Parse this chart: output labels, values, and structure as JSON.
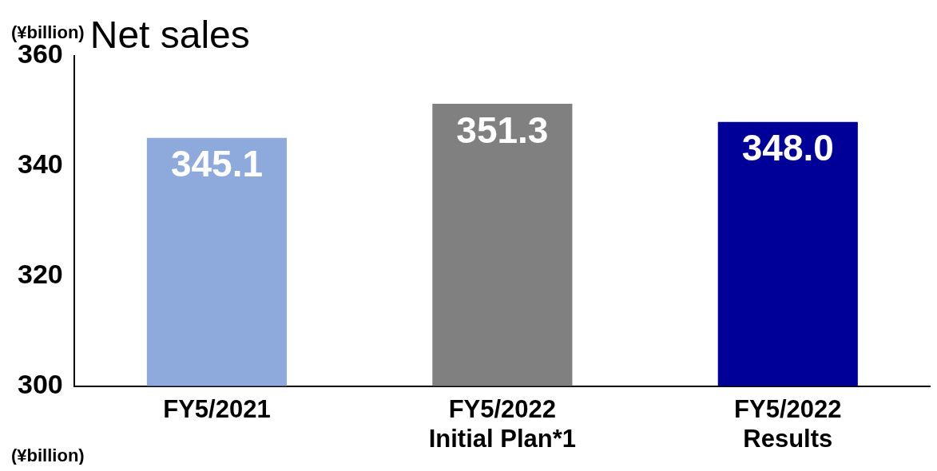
{
  "chart_data": {
    "type": "bar",
    "title": "Net sales",
    "ylabel": "(¥billion)",
    "annotations": [
      "(¥billion)"
    ],
    "categories": [
      "FY5/2021",
      "FY5/2022\nInitial Plan*1",
      "FY5/2022\nResults"
    ],
    "values": [
      345.1,
      351.3,
      348.0
    ],
    "colors": [
      "#8eaadc",
      "#808080",
      "#000099"
    ],
    "ylim": [
      300,
      360
    ],
    "yticks": [
      300,
      320,
      340,
      360
    ],
    "grid": false,
    "legend": false,
    "value_labels": [
      "345.1",
      "351.3",
      "348.0"
    ]
  }
}
